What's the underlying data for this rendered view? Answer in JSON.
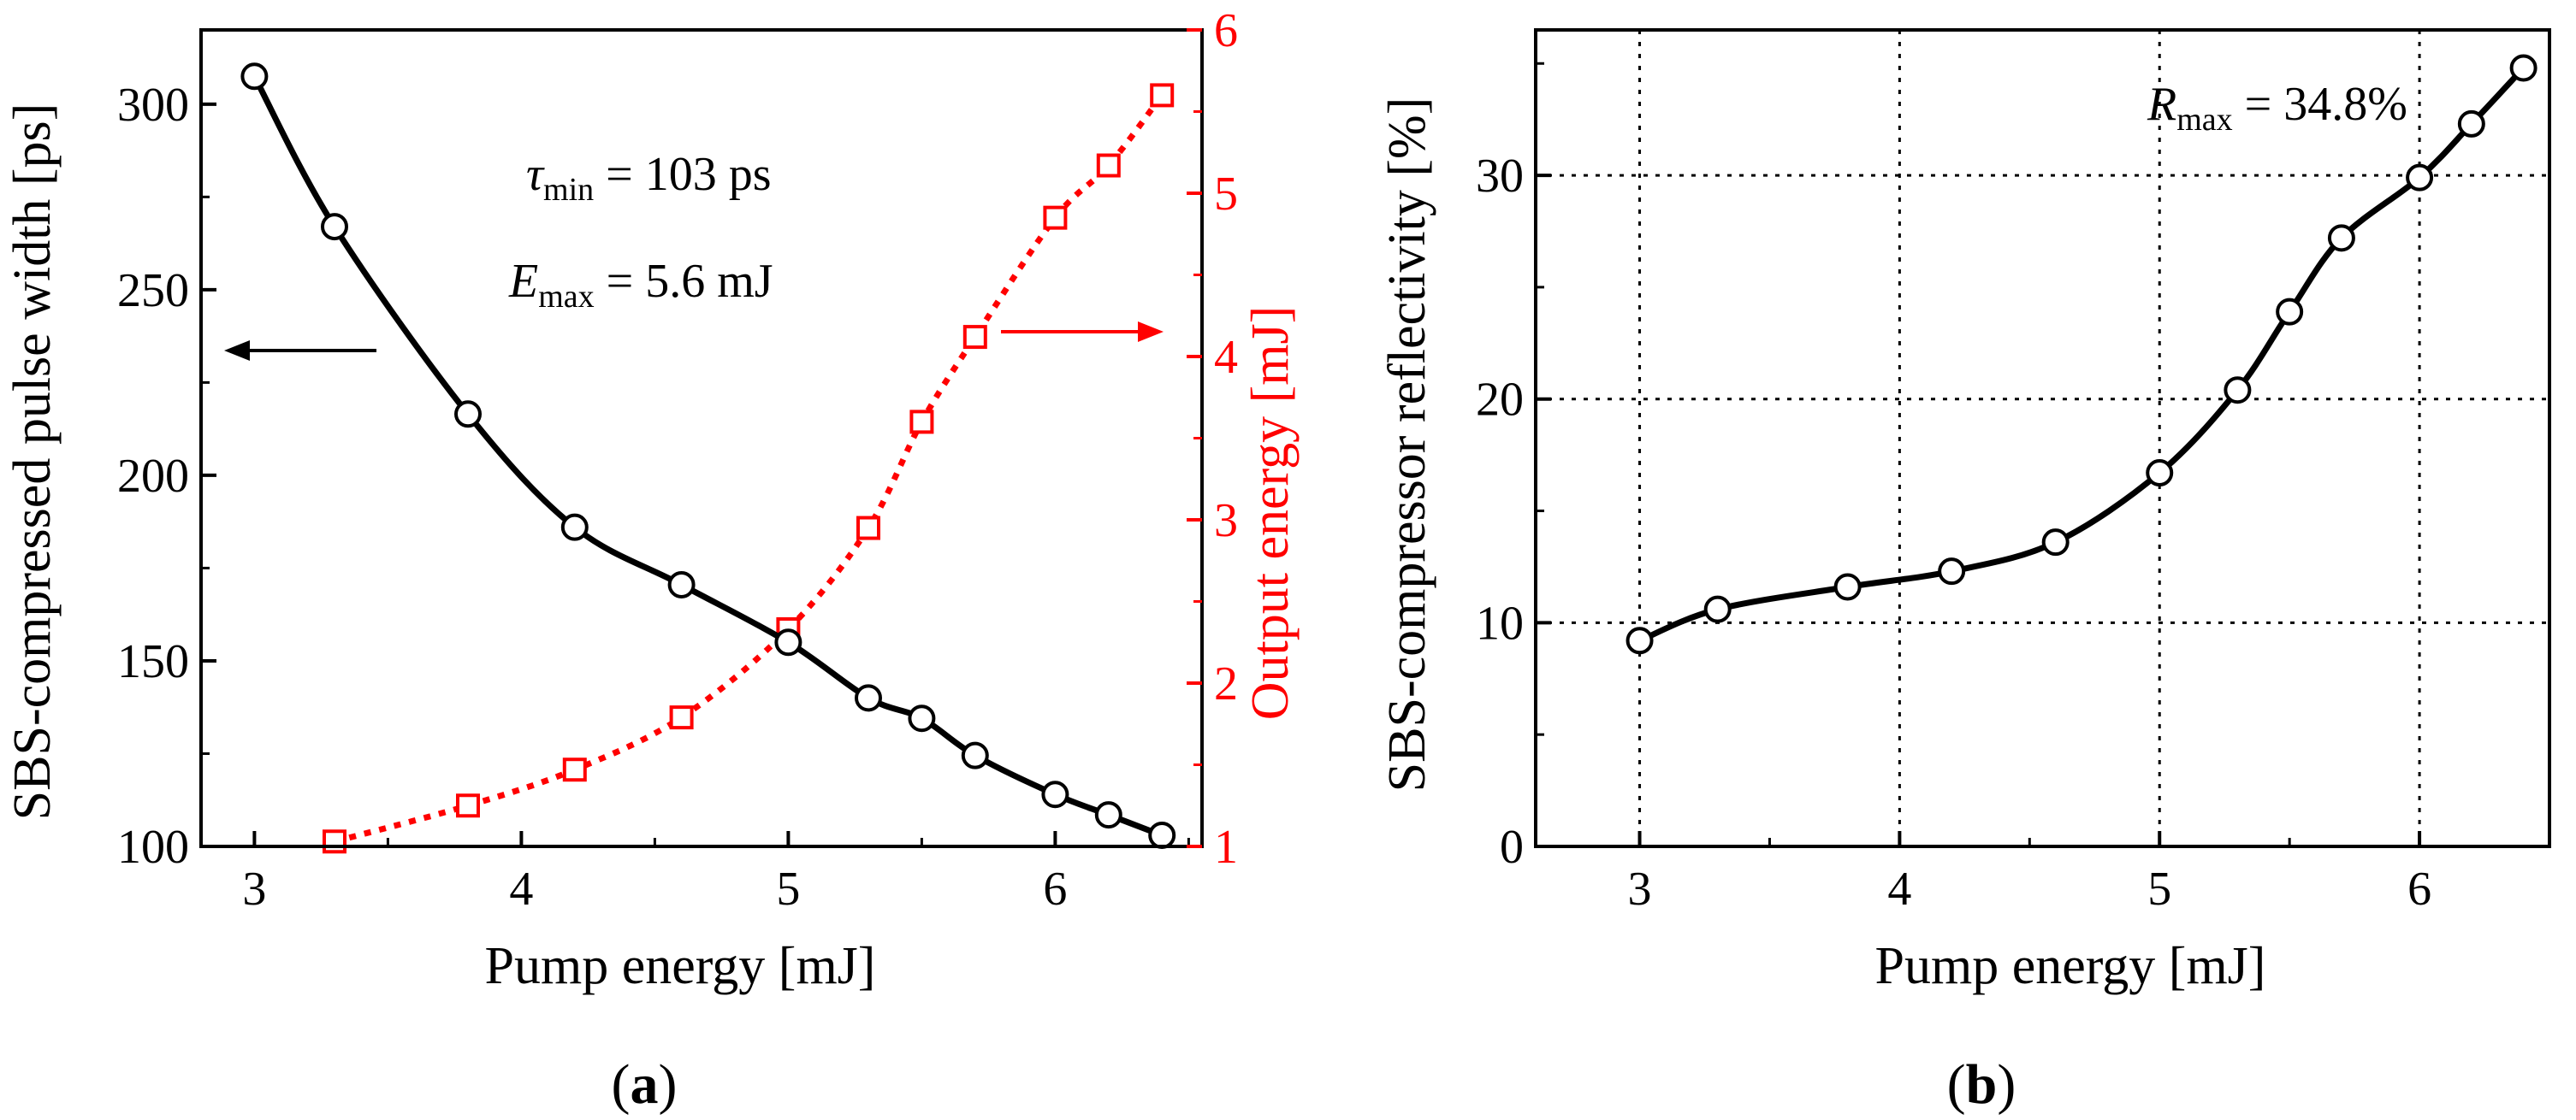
{
  "chart_data": [
    {
      "type": "line",
      "panel_label": "a",
      "xlabel": "Pump energy [mJ]",
      "ylabel": "SBS-compressed pulse width [ps]",
      "y2label": "Output energy [mJ]",
      "xlim": [
        2.8,
        6.55
      ],
      "ylim": [
        100,
        320
      ],
      "y2lim": [
        1,
        6
      ],
      "xticks": [
        "3",
        "4",
        "5",
        "6"
      ],
      "yticks": [
        "100",
        "150",
        "200",
        "250",
        "300"
      ],
      "y2ticks": [
        "1",
        "2",
        "3",
        "4",
        "5",
        "6"
      ],
      "annotations": {
        "tau_symbol": "τ",
        "tau_sub": "min",
        "tau_value": " = 103 ps",
        "e_symbol": "E",
        "e_sub": "max",
        "e_value": " = 5.6 mJ"
      },
      "series": [
        {
          "name": "Pulse width",
          "axis": "left",
          "color": "#000000",
          "marker": "circle",
          "line": "solid",
          "x": [
            3.0,
            3.3,
            3.8,
            4.2,
            4.6,
            5.0,
            5.3,
            5.5,
            5.7,
            6.0,
            6.2,
            6.4
          ],
          "values": [
            307.5,
            267,
            216.5,
            186,
            170.5,
            155,
            140,
            134.5,
            124.5,
            114,
            108.5,
            103
          ]
        },
        {
          "name": "Output energy",
          "axis": "right",
          "color": "#ff0000",
          "marker": "square",
          "line": "dotted",
          "x": [
            3.3,
            3.8,
            4.2,
            4.6,
            5.0,
            5.3,
            5.5,
            5.7,
            6.0,
            6.2,
            6.4
          ],
          "values": [
            1.03,
            1.25,
            1.47,
            1.79,
            2.33,
            2.95,
            3.6,
            4.12,
            4.85,
            5.17,
            5.6
          ]
        }
      ]
    },
    {
      "type": "line",
      "panel_label": "b",
      "xlabel": "Pump energy [mJ]",
      "ylabel": "SBS-compressor reflectivity [%]",
      "xlim": [
        2.6,
        6.5
      ],
      "ylim": [
        0,
        36.5
      ],
      "xticks": [
        "3",
        "4",
        "5",
        "6"
      ],
      "yticks": [
        "0",
        "10",
        "20",
        "30"
      ],
      "grid": true,
      "annotations": {
        "r_symbol": "R",
        "r_sub": "max",
        "r_value": " = 34.8%"
      },
      "series": [
        {
          "name": "Reflectivity",
          "color": "#000000",
          "marker": "circle",
          "line": "solid",
          "x": [
            3.0,
            3.3,
            3.8,
            4.2,
            4.6,
            5.0,
            5.3,
            5.5,
            5.7,
            6.0,
            6.2,
            6.4
          ],
          "values": [
            9.2,
            10.6,
            11.6,
            12.3,
            13.6,
            16.7,
            20.4,
            23.9,
            27.2,
            29.9,
            32.3,
            34.8
          ]
        }
      ]
    }
  ]
}
